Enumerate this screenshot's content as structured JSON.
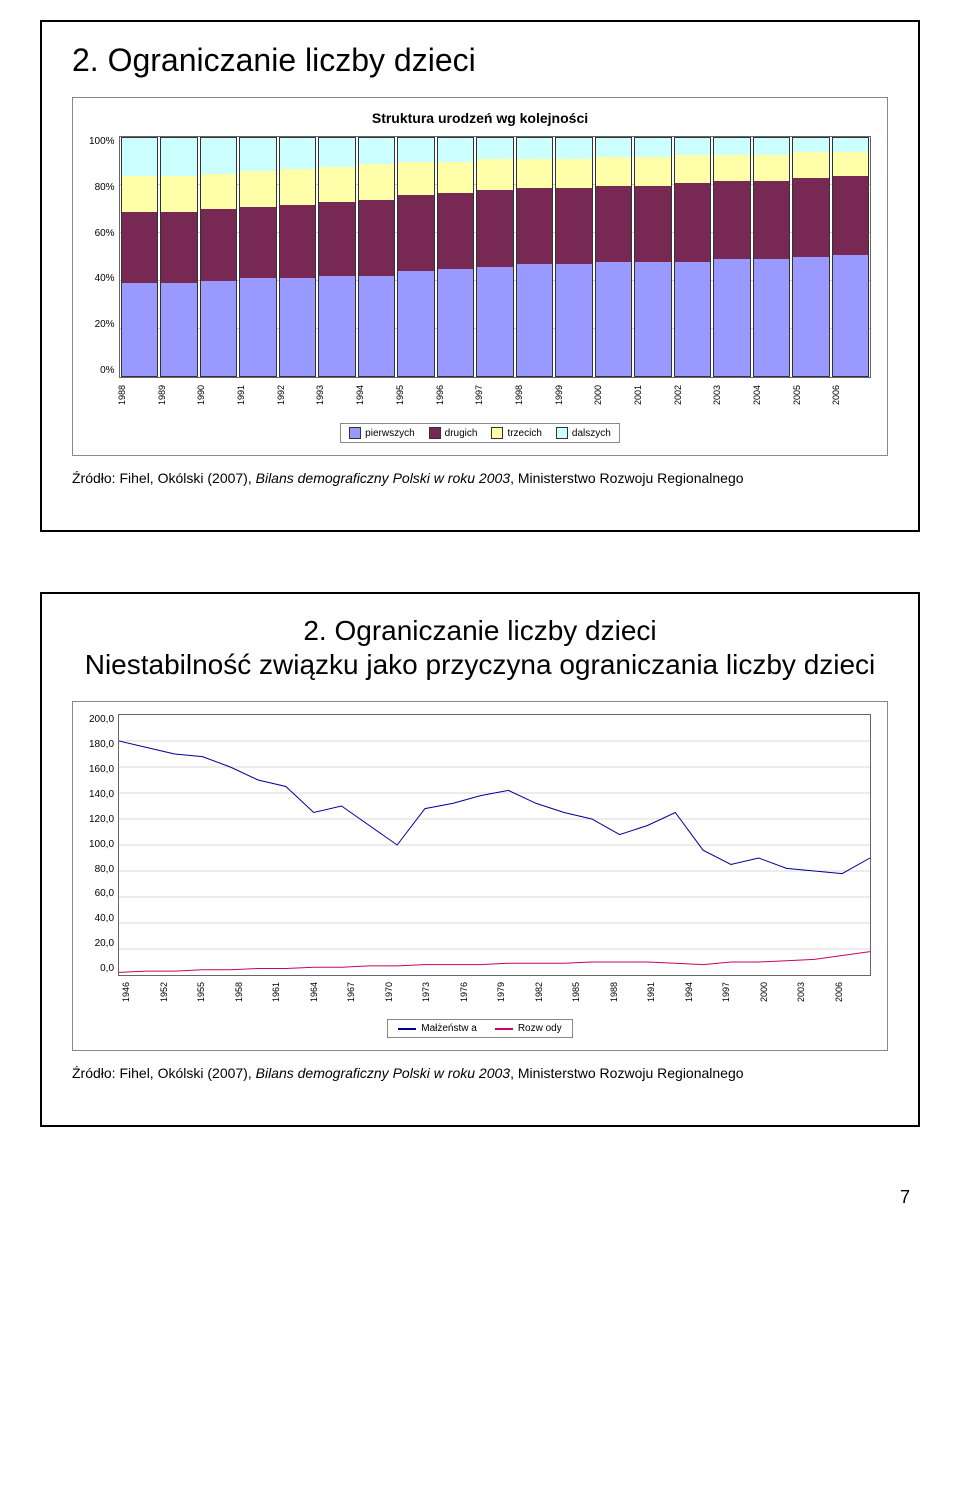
{
  "slide1": {
    "title": "2. Ograniczanie liczby dzieci",
    "chart": {
      "type": "stacked-bar",
      "title": "Struktura urodzeń wg kolejności",
      "y_ticks": [
        "0%",
        "20%",
        "40%",
        "60%",
        "80%",
        "100%"
      ],
      "ylim": [
        0,
        100
      ],
      "grid_color": "#cccccc",
      "border_color": "#666666",
      "background_color": "#ffffff",
      "legend": [
        "pierwszych",
        "drugich",
        "trzecich",
        "dalszych"
      ],
      "series_colors": [
        "#9999ff",
        "#772953",
        "#ffffaa",
        "#ccffff"
      ],
      "categories": [
        "1988",
        "1989",
        "1990",
        "1991",
        "1992",
        "1993",
        "1994",
        "1995",
        "1996",
        "1997",
        "1998",
        "1999",
        "2000",
        "2001",
        "2002",
        "2003",
        "2004",
        "2005",
        "2006"
      ],
      "data": [
        [
          39,
          30,
          15,
          16
        ],
        [
          39,
          30,
          15,
          16
        ],
        [
          40,
          30,
          15,
          15
        ],
        [
          41,
          30,
          15,
          14
        ],
        [
          41,
          31,
          15,
          13
        ],
        [
          42,
          31,
          15,
          12
        ],
        [
          42,
          32,
          15,
          11
        ],
        [
          44,
          32,
          14,
          10
        ],
        [
          45,
          32,
          13,
          10
        ],
        [
          46,
          32,
          13,
          9
        ],
        [
          47,
          32,
          12,
          9
        ],
        [
          47,
          32,
          12,
          9
        ],
        [
          48,
          32,
          12,
          8
        ],
        [
          48,
          32,
          12,
          8
        ],
        [
          48,
          33,
          12,
          7
        ],
        [
          49,
          33,
          11,
          7
        ],
        [
          49,
          33,
          11,
          7
        ],
        [
          50,
          33,
          11,
          6
        ],
        [
          51,
          33,
          10,
          6
        ]
      ]
    },
    "source_prefix": "Źródło: Fihel, Okólski (2007), ",
    "source_italic": "Bilans demograficzny Polski w roku 2003",
    "source_suffix": ", Ministerstwo Rozwoju Regionalnego"
  },
  "slide2": {
    "title_line1": "2. Ograniczanie liczby dzieci",
    "title_line2": "Niestabilność związku jako przyczyna ograniczania liczby dzieci",
    "chart": {
      "type": "line",
      "ylim": [
        0,
        200
      ],
      "y_ticks": [
        "0,0",
        "20,0",
        "40,0",
        "60,0",
        "80,0",
        "100,0",
        "120,0",
        "140,0",
        "160,0",
        "180,0",
        "200,0"
      ],
      "x_labels": [
        "1946",
        "1952",
        "1955",
        "1958",
        "1961",
        "1964",
        "1967",
        "1970",
        "1973",
        "1976",
        "1979",
        "1982",
        "1985",
        "1988",
        "1991",
        "1994",
        "1997",
        "2000",
        "2003",
        "2006"
      ],
      "grid_color": "#cccccc",
      "background_color": "#ffffff",
      "series": [
        {
          "name": "Małżeństw a",
          "color": "#000099",
          "width": 2,
          "values": [
            180,
            175,
            170,
            168,
            160,
            150,
            145,
            125,
            130,
            115,
            100,
            128,
            132,
            138,
            142,
            132,
            125,
            120,
            108,
            115,
            125,
            96,
            85,
            90,
            82,
            80,
            78,
            90
          ]
        },
        {
          "name": "Rozw ody",
          "color": "#cc0066",
          "width": 2,
          "values": [
            2,
            3,
            3,
            4,
            4,
            5,
            5,
            6,
            6,
            7,
            7,
            8,
            8,
            8,
            9,
            9,
            9,
            10,
            10,
            10,
            9,
            8,
            10,
            10,
            11,
            12,
            15,
            18
          ]
        }
      ]
    },
    "source_prefix": "Źródło: Fihel, Okólski (2007), ",
    "source_italic": "Bilans demograficzny Polski w roku 2003",
    "source_suffix": ", Ministerstwo Rozwoju Regionalnego"
  },
  "page_number": "7"
}
